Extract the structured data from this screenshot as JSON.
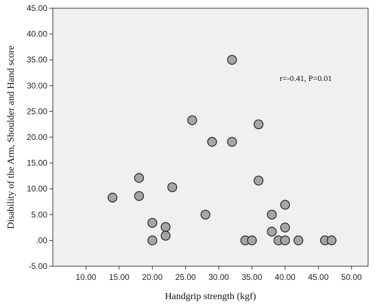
{
  "chart_data": {
    "type": "scatter",
    "xlabel": "Handgrip strength (kgf)",
    "ylabel": "Disability of the Arm, Shoulder and Hand score",
    "xlim": [
      5,
      52.5
    ],
    "ylim": [
      -5,
      45
    ],
    "x_ticks": [
      "10.00",
      "15.00",
      "20.00",
      "25.00",
      "30.00",
      "35.00",
      "40.00",
      "45.00",
      "50.00"
    ],
    "x_tick_values": [
      10,
      15,
      20,
      25,
      30,
      35,
      40,
      45,
      50
    ],
    "y_ticks": [
      "45.00",
      "40.00",
      "35.00",
      "30.00",
      "25.00",
      "20.00",
      "15.00",
      "10.00",
      "5.00",
      ".00",
      "-5.00"
    ],
    "y_tick_values": [
      45,
      40,
      35,
      30,
      25,
      20,
      15,
      10,
      5,
      0,
      -5
    ],
    "grid": false,
    "annotation": "r=-0.41, P=0.01",
    "marker_fill": "#a6a6a6",
    "marker_stroke": "#222222",
    "plot_background": "#f0f0f0",
    "points": [
      {
        "x": 14,
        "y": 8.3
      },
      {
        "x": 18,
        "y": 12.1
      },
      {
        "x": 18,
        "y": 8.6
      },
      {
        "x": 20,
        "y": 3.4
      },
      {
        "x": 20,
        "y": 0
      },
      {
        "x": 22,
        "y": 2.6
      },
      {
        "x": 22,
        "y": 0.9
      },
      {
        "x": 23,
        "y": 10.3
      },
      {
        "x": 26,
        "y": 23.3
      },
      {
        "x": 28,
        "y": 5.0
      },
      {
        "x": 29,
        "y": 19.1
      },
      {
        "x": 32,
        "y": 35.0
      },
      {
        "x": 32,
        "y": 19.1
      },
      {
        "x": 34,
        "y": 0
      },
      {
        "x": 35,
        "y": 0
      },
      {
        "x": 36,
        "y": 22.5
      },
      {
        "x": 36,
        "y": 11.6
      },
      {
        "x": 38,
        "y": 5.0
      },
      {
        "x": 38,
        "y": 1.7
      },
      {
        "x": 39,
        "y": 0
      },
      {
        "x": 40,
        "y": 6.9
      },
      {
        "x": 40,
        "y": 2.5
      },
      {
        "x": 40,
        "y": 0
      },
      {
        "x": 42,
        "y": 0
      },
      {
        "x": 46,
        "y": 0
      },
      {
        "x": 47,
        "y": 0
      }
    ]
  }
}
